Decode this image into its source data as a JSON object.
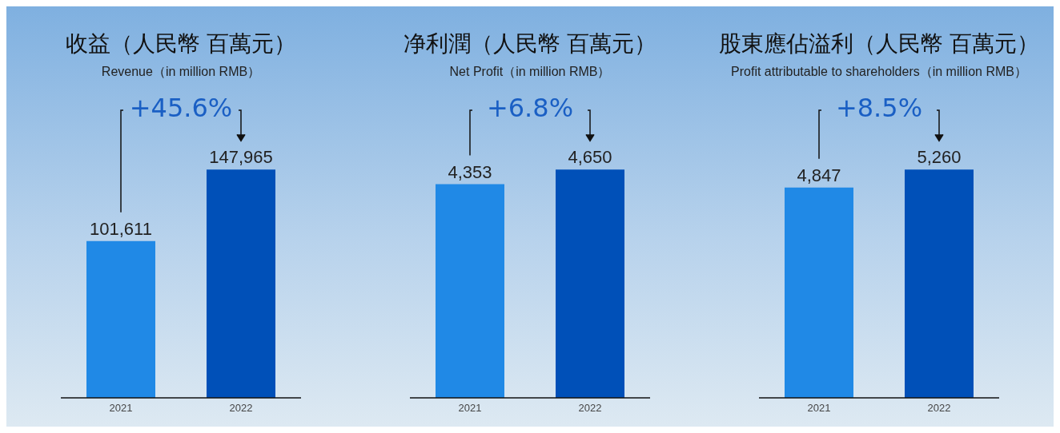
{
  "chart_data": [
    {
      "type": "bar",
      "title": "收益（人民幣 百萬元）",
      "subtitle": "Revenue（in million RMB）",
      "categories": [
        "2021",
        "2022"
      ],
      "values": [
        101611,
        147965
      ],
      "value_labels": [
        "101,611",
        "147,965"
      ],
      "colors": [
        "#2089e6",
        "#0050b8"
      ],
      "annotations": [
        "+45.6%"
      ]
    },
    {
      "type": "bar",
      "title": "净利潤（人民幣 百萬元）",
      "subtitle": "Net Profit（in million RMB）",
      "categories": [
        "2021",
        "2022"
      ],
      "values": [
        4353,
        4650
      ],
      "value_labels": [
        "4,353",
        "4,650"
      ],
      "colors": [
        "#2089e6",
        "#0050b8"
      ],
      "annotations": [
        "+6.8%"
      ]
    },
    {
      "type": "bar",
      "title": "股東應佔溢利（人民幣 百萬元）",
      "subtitle": "Profit attributable to shareholders（in million RMB）",
      "categories": [
        "2021",
        "2022"
      ],
      "values": [
        4847,
        5260
      ],
      "value_labels": [
        "4,847",
        "5,260"
      ],
      "colors": [
        "#2089e6",
        "#0050b8"
      ],
      "annotations": [
        "+8.5%"
      ]
    }
  ]
}
